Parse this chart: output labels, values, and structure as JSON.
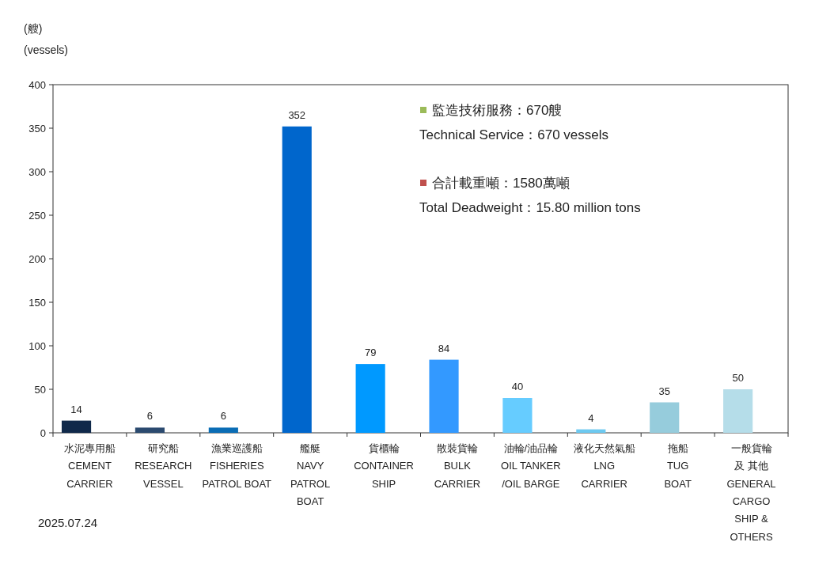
{
  "chart_data": {
    "type": "bar",
    "ylabel": "(艘)\n(vessels)",
    "categories": [
      "水泥專用船\nCEMENT\nCARRIER",
      "研究船\nRESEARCH\nVESSEL",
      "漁業巡護船\nFISHERIES\nPATROL BOAT",
      "艦艇\nNAVY\nPATROL\nBOAT",
      "貨櫃輪\nCONTAINER\nSHIP",
      "散裝貨輪\nBULK\nCARRIER",
      "油輪/油品輪\nOIL TANKER\n/OIL BARGE",
      "液化天然氣船\nLNG\nCARRIER",
      "拖船\nTUG\nBOAT",
      "一般貨輪及 其他\nGENERAL\nCARGO\nSHIP &\nOTHERS"
    ],
    "values": [
      14,
      6,
      6,
      352,
      79,
      84,
      40,
      4,
      35,
      50
    ],
    "colors": [
      "#10294a",
      "#2b4a6f",
      "#0a6db5",
      "#0066cc",
      "#0099ff",
      "#3399ff",
      "#66ccff",
      "#6dc9f0",
      "#96ccdc",
      "#b5dde9"
    ],
    "ylim": [
      0,
      400
    ],
    "yticks": [
      0,
      50,
      100,
      150,
      200,
      250,
      300,
      350,
      400
    ],
    "data_labels": true,
    "grid": false,
    "annotations": [
      "監造技術服務：670艘",
      "Technical Service：670 vessels",
      "合計載重噸：1580萬噸",
      "Total Deadweight：15.80 million tons",
      "2025.07.24"
    ]
  }
}
